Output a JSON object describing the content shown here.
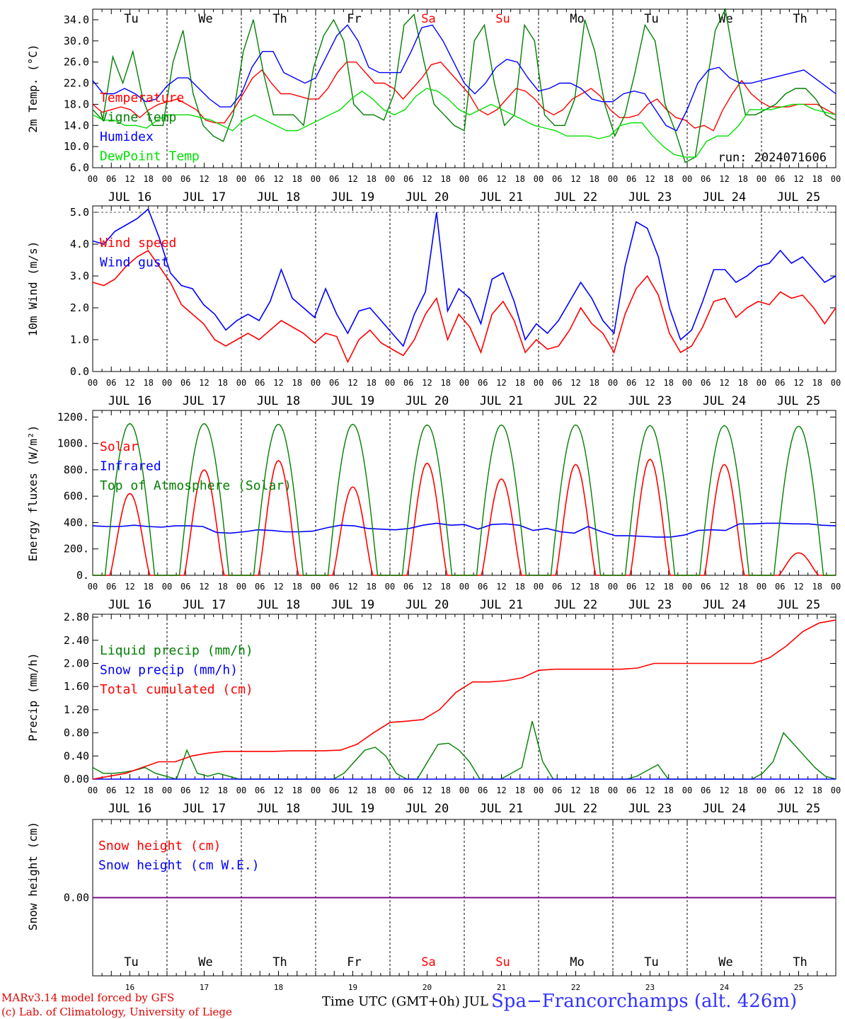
{
  "footer": {
    "credit_line1": "MARv3.14 model forced by GFS",
    "credit_line2": "(c) Lab. of Climatology, University of Liege",
    "xaxis_title": "Time UTC (GMT+0h) JUL",
    "station": "Spa−Francorchamps (alt. 426m)"
  },
  "run_label": "run: 2024071606",
  "days": [
    "Tu",
    "We",
    "Th",
    "Fr",
    "Sa",
    "Su",
    "Mo",
    "Tu",
    "We",
    "Th"
  ],
  "weekend_days": [
    "Sa",
    "Su"
  ],
  "dates": [
    "JUL 16",
    "JUL 17",
    "JUL 18",
    "JUL 19",
    "JUL 20",
    "JUL 21",
    "JUL 22",
    "JUL 23",
    "JUL 24",
    "JUL 25"
  ],
  "bottom_day_numbers": [
    "16",
    "17",
    "18",
    "19",
    "20",
    "21",
    "22",
    "23",
    "24",
    "25"
  ],
  "hour_ticks": [
    "00",
    "06",
    "12",
    "18"
  ],
  "colors": {
    "red": "#ff0000",
    "green": "#007f00",
    "blue": "#0000ff",
    "lightgreen": "#00e000",
    "purple": "#7f007f"
  },
  "chart_data": [
    {
      "type": "line",
      "id": "temperature",
      "ylabel": "2m Temp. (°C)",
      "ylim": [
        6,
        36
      ],
      "ytick_labels": [
        "6.0",
        "10.0",
        "14.0",
        "18.0",
        "22.0",
        "26.0",
        "30.0",
        "34.0"
      ],
      "x_start": "2024-07-16 00:00",
      "x_end": "2024-07-26 00:00",
      "x_step_hours": 6,
      "series": [
        {
          "name": "Temperature",
          "color": "red",
          "values": [
            18,
            16.5,
            17,
            17.5,
            17,
            15.5,
            17,
            18,
            18.5,
            19,
            18,
            17,
            15,
            14.5,
            14.5,
            17,
            20,
            23,
            24.5,
            22,
            20,
            20,
            19.5,
            19,
            19,
            21,
            24,
            26,
            26,
            24,
            22,
            22,
            21,
            19,
            21,
            23,
            25.5,
            26,
            24,
            22,
            20,
            17,
            16,
            17,
            19,
            21,
            20.5,
            19,
            17,
            16,
            17,
            19,
            20,
            21,
            19.5,
            17,
            15.5,
            15.5,
            16,
            18,
            19,
            17,
            15.5,
            15,
            13.5,
            14,
            13,
            17,
            20,
            22.5,
            20,
            18.5,
            17.5,
            17.5,
            17.5,
            18,
            18,
            18,
            17,
            16
          ]
        },
        {
          "name": "Vigne temp",
          "color": "green",
          "values": [
            17,
            15,
            27,
            22,
            28,
            19,
            14,
            14,
            26,
            32,
            20,
            14,
            12,
            11,
            16,
            28,
            34,
            24,
            16,
            16,
            16,
            14,
            25,
            31,
            34,
            30,
            18,
            16,
            16,
            15,
            20,
            33,
            35,
            26,
            18,
            16,
            14,
            13,
            30,
            33,
            22,
            14,
            16,
            33,
            30,
            16,
            14,
            14,
            19,
            34,
            28,
            18,
            12,
            16,
            24,
            33,
            30,
            18,
            13,
            7,
            8,
            20,
            32,
            36,
            25,
            16,
            16,
            17,
            18,
            20,
            21,
            21,
            19,
            16,
            15
          ]
        },
        {
          "name": "Humidex",
          "color": "blue",
          "values": [
            22.5,
            20,
            20,
            21,
            20,
            18.5,
            19,
            21.5,
            23,
            23,
            21,
            19,
            17.5,
            17.5,
            20,
            25,
            28,
            28,
            24,
            23,
            22,
            23,
            27,
            31,
            33,
            30,
            25,
            24,
            24,
            24,
            28,
            32.5,
            33,
            30,
            26,
            22,
            20,
            22,
            25,
            26.5,
            26,
            23,
            20.5,
            21,
            22,
            22,
            21,
            19,
            18.5,
            18.5,
            20,
            20.5,
            20,
            17,
            14,
            13,
            17,
            22,
            24.5,
            25,
            23,
            22,
            22,
            22.5,
            23,
            23.5,
            24,
            24.5,
            23,
            21.5,
            20
          ]
        },
        {
          "name": "DewPoint Temp",
          "color": "lightgreen",
          "values": [
            16,
            15,
            15,
            14,
            14,
            13.5,
            15,
            16,
            16,
            16,
            15.5,
            15,
            14,
            13,
            15,
            16,
            15,
            14,
            13,
            13,
            14,
            15,
            16,
            17,
            19,
            20.5,
            19,
            17,
            16,
            17,
            19.5,
            21,
            20.5,
            19,
            17,
            16,
            17,
            18,
            17,
            16,
            15,
            14,
            13.5,
            13,
            12,
            12,
            12,
            11.5,
            12,
            14,
            14.5,
            14.5,
            12,
            10,
            8.5,
            8,
            8,
            11,
            12,
            12,
            14,
            17,
            17,
            17,
            17.5,
            18,
            18,
            17,
            16.5,
            16
          ]
        }
      ]
    },
    {
      "type": "line",
      "id": "wind",
      "ylabel": "10m Wind (m/s)",
      "ylim": [
        0,
        5.2
      ],
      "ytick_labels": [
        "0.0",
        "1.0",
        "2.0",
        "3.0",
        "4.0",
        "5.0"
      ],
      "x_start": "2024-07-16 00:00",
      "x_end": "2024-07-26 00:00",
      "x_step_hours": 6,
      "series": [
        {
          "name": "Wind speed",
          "color": "red",
          "values": [
            2.8,
            2.7,
            2.9,
            3.3,
            3.6,
            3.8,
            3.3,
            2.8,
            2.1,
            1.8,
            1.5,
            1.0,
            0.8,
            1.0,
            1.2,
            1.0,
            1.3,
            1.6,
            1.4,
            1.2,
            0.9,
            1.2,
            1.1,
            0.3,
            1.0,
            1.3,
            0.9,
            0.7,
            0.5,
            1.0,
            1.8,
            2.3,
            1.0,
            1.8,
            1.4,
            0.6,
            1.8,
            2.2,
            1.6,
            0.6,
            1.0,
            0.7,
            0.8,
            1.3,
            2.0,
            1.5,
            1.2,
            0.6,
            1.8,
            2.6,
            3.0,
            2.4,
            1.2,
            0.6,
            0.8,
            1.4,
            2.2,
            2.3,
            1.7,
            2.0,
            2.2,
            2.1,
            2.5,
            2.3,
            2.4,
            2.0,
            1.5,
            2.0
          ]
        },
        {
          "name": "Wind gust",
          "color": "blue",
          "values": [
            4.1,
            4.0,
            4.4,
            4.6,
            4.8,
            5.1,
            4.2,
            3.1,
            2.7,
            2.6,
            2.1,
            1.8,
            1.3,
            1.6,
            1.8,
            1.6,
            2.2,
            3.2,
            2.3,
            2.0,
            1.7,
            2.6,
            1.8,
            1.2,
            1.9,
            2.0,
            1.6,
            1.2,
            0.8,
            1.8,
            2.5,
            5.0,
            1.9,
            2.6,
            2.3,
            1.5,
            2.9,
            3.1,
            2.2,
            1.0,
            1.5,
            1.2,
            1.6,
            2.2,
            2.8,
            2.3,
            1.6,
            1.2,
            3.3,
            4.7,
            4.5,
            3.6,
            2.0,
            1.0,
            1.3,
            2.2,
            3.2,
            3.2,
            2.8,
            3.0,
            3.3,
            3.4,
            3.8,
            3.4,
            3.6,
            3.2,
            2.8,
            3.0
          ]
        }
      ]
    },
    {
      "type": "line",
      "id": "energy",
      "ylabel": "Energy fluxes (W/m²)",
      "ylim": [
        0,
        1250
      ],
      "ytick_labels": [
        "0.",
        "200.",
        "400.",
        "600.",
        "800.",
        "1000.",
        "1200."
      ],
      "x_start": "2024-07-16 00:00",
      "x_end": "2024-07-26 00:00",
      "daily_peak_hour": 12,
      "series": [
        {
          "name": "Solar",
          "color": "red",
          "daily_peak_values": [
            620,
            800,
            870,
            670,
            850,
            730,
            840,
            880,
            840,
            170
          ]
        },
        {
          "name": "Infrared",
          "color": "blue",
          "values": [
            375,
            370,
            370,
            380,
            370,
            365,
            375,
            375,
            370,
            325,
            320,
            330,
            345,
            340,
            330,
            330,
            335,
            360,
            380,
            375,
            355,
            350,
            345,
            355,
            380,
            395,
            380,
            385,
            350,
            385,
            390,
            380,
            340,
            355,
            330,
            320,
            370,
            330,
            300,
            300,
            295,
            290,
            290,
            305,
            340,
            345,
            340,
            390,
            390,
            395,
            395,
            390,
            390,
            380,
            375
          ]
        },
        {
          "name": "Top of Atmosphere (Solar)",
          "color": "green",
          "daily_peak_values": [
            1150,
            1150,
            1145,
            1145,
            1140,
            1140,
            1140,
            1135,
            1135,
            1130
          ]
        }
      ]
    },
    {
      "type": "line",
      "id": "precip",
      "ylabel": "Precip (mm/h)",
      "ylim": [
        0,
        2.85
      ],
      "ytick_labels": [
        "0.00",
        "0.40",
        "0.80",
        "1.20",
        "1.60",
        "2.00",
        "2.40",
        "2.80"
      ],
      "x_start": "2024-07-16 00:00",
      "x_end": "2024-07-26 00:00",
      "x_step_hours": 6,
      "series": [
        {
          "name": "Liquid precip (mm/h)",
          "color": "green",
          "values": [
            0.2,
            0.1,
            0.1,
            0.12,
            0.15,
            0.2,
            0.1,
            0.05,
            0.0,
            0.5,
            0.1,
            0.05,
            0.1,
            0.05,
            0.0,
            0.0,
            0.0,
            0.0,
            0.0,
            0.0,
            0.0,
            0.0,
            0.0,
            0.0,
            0.1,
            0.3,
            0.5,
            0.55,
            0.4,
            0.1,
            0.0,
            0.0,
            0.3,
            0.6,
            0.62,
            0.5,
            0.3,
            0.0,
            0.0,
            0.0,
            0.1,
            0.2,
            1.0,
            0.3,
            0.0,
            0.0,
            0.0,
            0.0,
            0.0,
            0.0,
            0.0,
            0.0,
            0.05,
            0.15,
            0.25,
            0.0,
            0.0,
            0.0,
            0.0,
            0.0,
            0.0,
            0.0,
            0.0,
            0.0,
            0.1,
            0.3,
            0.8,
            0.6,
            0.4,
            0.2,
            0.05,
            0.0
          ]
        },
        {
          "name": "Snow precip (mm/h)",
          "color": "blue",
          "values": [
            0,
            0
          ]
        },
        {
          "name": "Total cumulated (cm)",
          "color": "red",
          "values": [
            0.0,
            0.05,
            0.1,
            0.2,
            0.3,
            0.3,
            0.4,
            0.45,
            0.48,
            0.48,
            0.48,
            0.48,
            0.49,
            0.49,
            0.49,
            0.5,
            0.6,
            0.8,
            0.98,
            1.0,
            1.03,
            1.2,
            1.5,
            1.68,
            1.68,
            1.7,
            1.75,
            1.88,
            1.9,
            1.9,
            1.9,
            1.9,
            1.9,
            1.92,
            2.0,
            2.0,
            2.0,
            2.0,
            2.0,
            2.0,
            2.0,
            2.1,
            2.3,
            2.55,
            2.7,
            2.75
          ]
        }
      ]
    },
    {
      "type": "line",
      "id": "snow",
      "ylabel": "Snow height (cm)",
      "ylim": [
        -1,
        1
      ],
      "ytick_labels": [
        "0.00"
      ],
      "x_start": "2024-07-16 00:00",
      "x_end": "2024-07-26 00:00",
      "series": [
        {
          "name": "Snow height (cm)",
          "color": "red",
          "values": [
            0,
            0
          ]
        },
        {
          "name": "Snow height (cm W.E.)",
          "color": "blue",
          "values": [
            0,
            0
          ]
        }
      ]
    }
  ]
}
